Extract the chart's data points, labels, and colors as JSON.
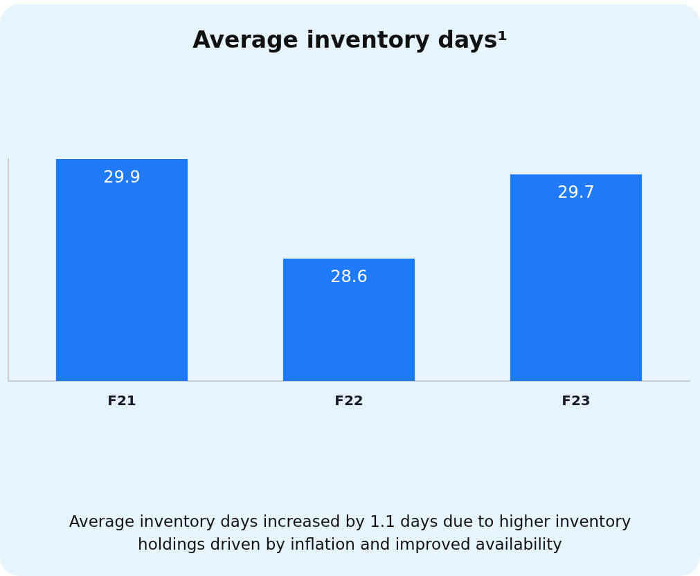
{
  "chart_data": {
    "type": "bar",
    "title": "Average inventory days¹",
    "categories": [
      "F21",
      "F22",
      "F23"
    ],
    "values": [
      29.9,
      28.6,
      29.7
    ],
    "color": "#1f7bfc",
    "ylim": [
      27,
      29.9
    ],
    "tick_labels": "x",
    "grid": false,
    "legend": false,
    "data_labels": true,
    "annotations": [
      "Average inventory days increased by 1.1 days due to higher inventory holdings driven by inflation and improved availability"
    ]
  }
}
